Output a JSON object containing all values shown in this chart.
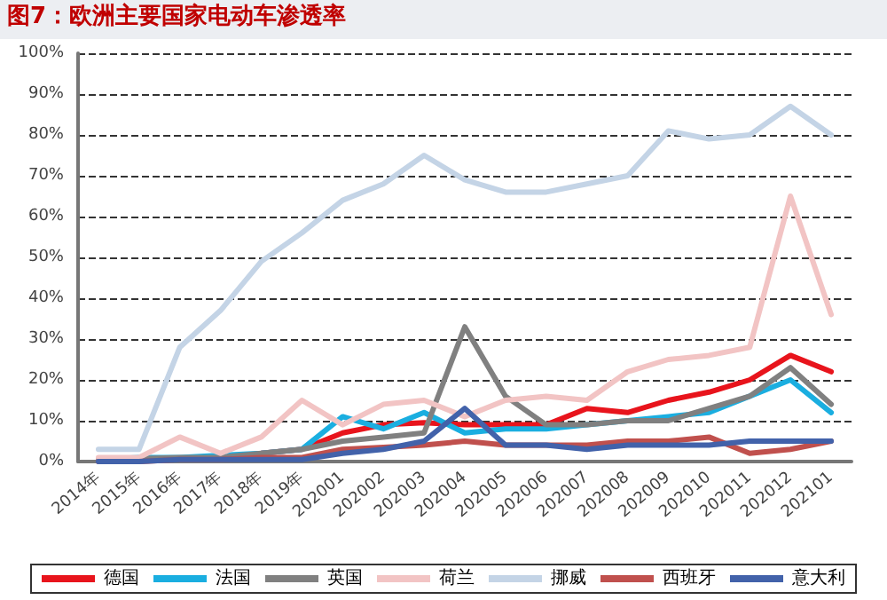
{
  "chart_data": {
    "type": "line",
    "title": "图7：欧洲主要国家电动车渗透率",
    "categories": [
      "2014年",
      "2015年",
      "2016年",
      "2017年",
      "2018年",
      "2019年",
      "202001",
      "202002",
      "202003",
      "202004",
      "202005",
      "202006",
      "202007",
      "202008",
      "202009",
      "202010",
      "202011",
      "202012",
      "202101"
    ],
    "series": [
      {
        "name": "德国",
        "color": "#e8141c",
        "values": [
          null,
          null,
          null,
          null,
          2,
          3,
          7,
          9,
          9.5,
          9,
          9,
          9,
          13,
          12,
          15,
          17,
          20,
          26,
          22
        ]
      },
      {
        "name": "法国",
        "color": "#1aaee0",
        "values": [
          0.5,
          1,
          1,
          1.5,
          2,
          3,
          11,
          8,
          12,
          7,
          8,
          8,
          9,
          10,
          11,
          12,
          16,
          20,
          12
        ]
      },
      {
        "name": "英国",
        "color": "#808080",
        "values": [
          0.5,
          0.7,
          1,
          1,
          2,
          3,
          5,
          6,
          7,
          33,
          16,
          9,
          9,
          10,
          10,
          13,
          16,
          23,
          14
        ]
      },
      {
        "name": "荷兰",
        "color": "#f2c4c4",
        "values": [
          1,
          1,
          6,
          2,
          6,
          15,
          9,
          14,
          15,
          11,
          15,
          16,
          15,
          22,
          25,
          26,
          28,
          65,
          36
        ]
      },
      {
        "name": "挪威",
        "color": "#c4d4e6",
        "values": [
          3,
          3,
          28,
          37,
          49,
          56,
          64,
          68,
          75,
          69,
          66,
          66,
          68,
          70,
          81,
          79,
          80,
          87,
          80
        ]
      },
      {
        "name": "西班牙",
        "color": "#c0504d",
        "values": [
          0,
          0,
          0.5,
          0.5,
          1,
          1,
          3,
          3.5,
          4,
          5,
          4,
          4,
          4,
          5,
          5,
          6,
          2,
          3,
          5
        ]
      },
      {
        "name": "意大利",
        "color": "#4262aa",
        "values": [
          0,
          0,
          0.5,
          0.5,
          0.5,
          0.5,
          2,
          3,
          5,
          13,
          4,
          4,
          3,
          4,
          4,
          4,
          5,
          5,
          5
        ]
      }
    ],
    "ylim": [
      0,
      100
    ],
    "yticks": [
      {
        "value": 0,
        "label": "0%"
      },
      {
        "value": 10,
        "label": "10%"
      },
      {
        "value": 20,
        "label": "20%"
      },
      {
        "value": 30,
        "label": "30%"
      },
      {
        "value": 40,
        "label": "40%"
      },
      {
        "value": 50,
        "label": "50%"
      },
      {
        "value": 60,
        "label": "60%"
      },
      {
        "value": 70,
        "label": "70%"
      },
      {
        "value": 80,
        "label": "80%"
      },
      {
        "value": 90,
        "label": "90%"
      },
      {
        "value": 100,
        "label": "100%"
      }
    ],
    "grid": "y",
    "legend": "bottom",
    "marker": "none",
    "line_style": "solid"
  }
}
